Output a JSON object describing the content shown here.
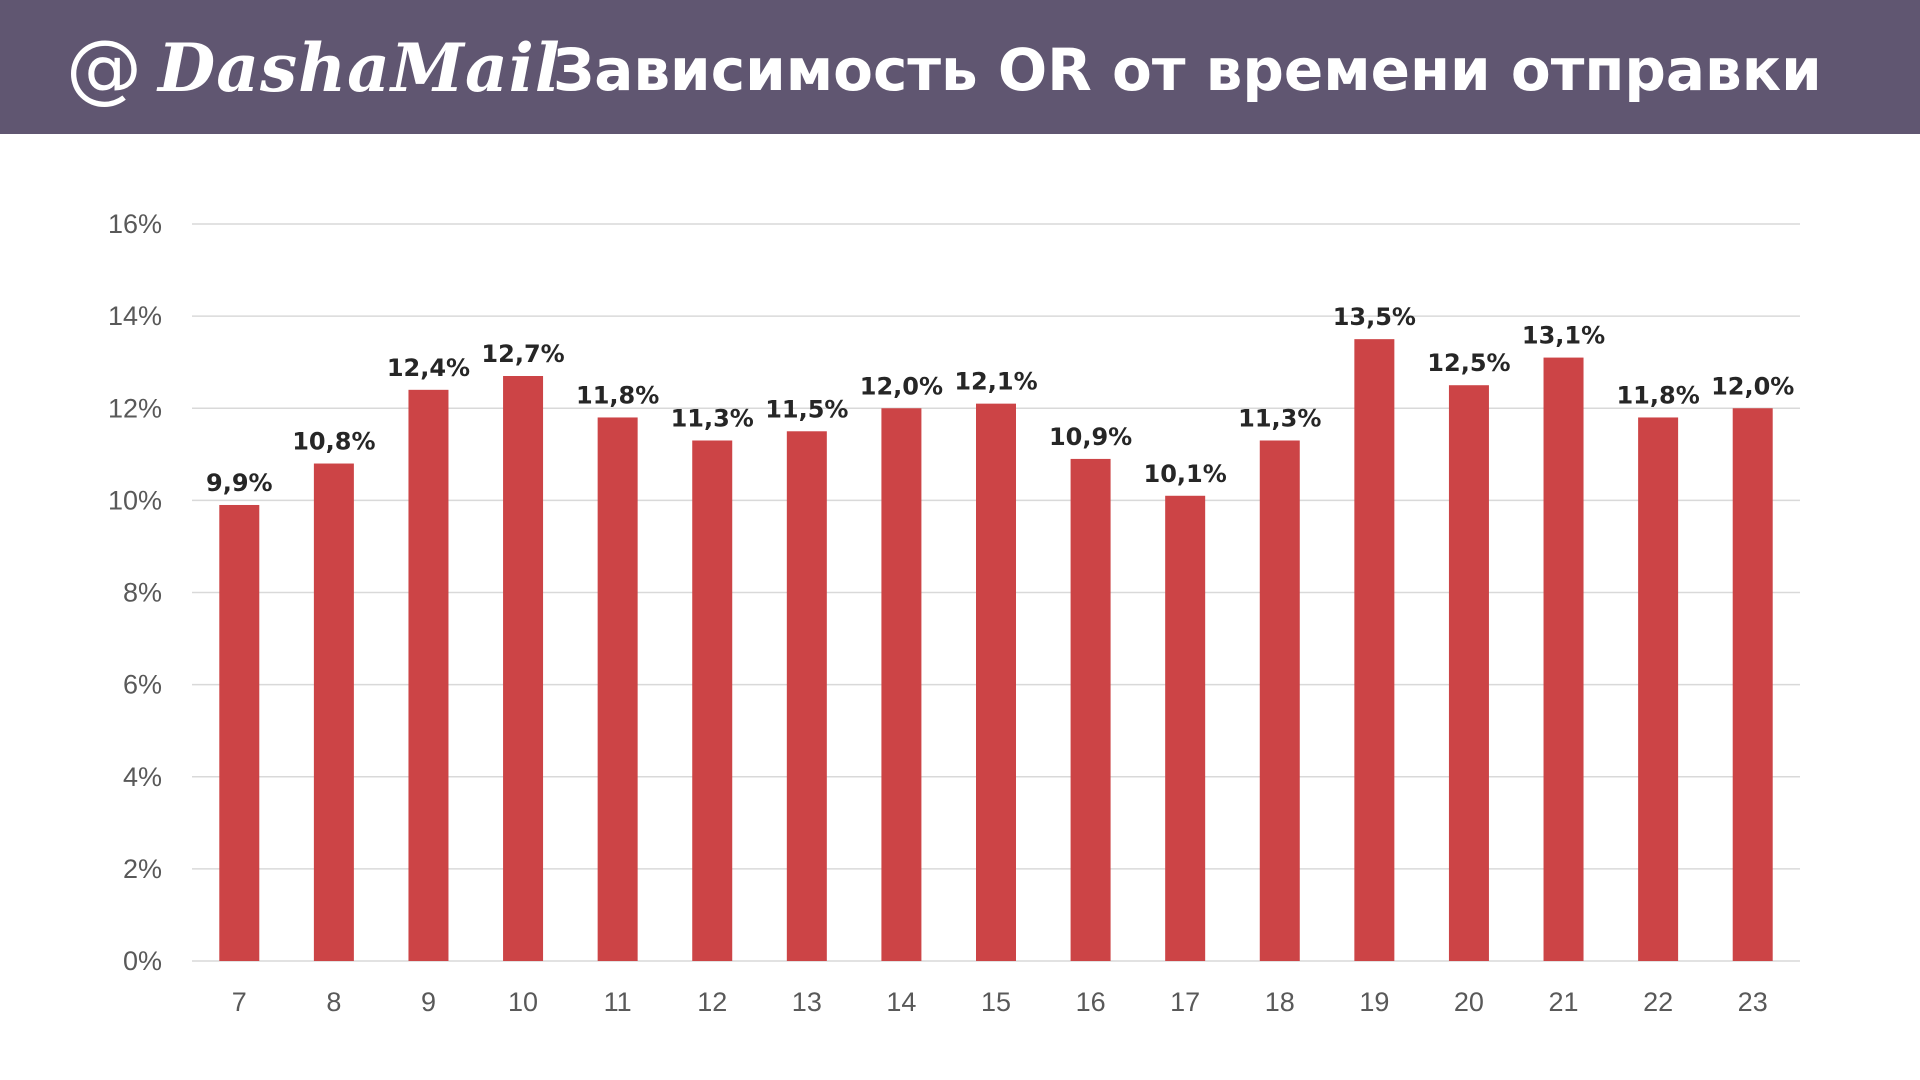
{
  "header": {
    "logo_text": "DashaMail",
    "logo_at": "@",
    "title": "Зависимость OR от времени отправки",
    "background": "#605671"
  },
  "chart_data": {
    "type": "bar",
    "title": "",
    "xlabel": "",
    "ylabel": "",
    "categories": [
      "7",
      "8",
      "9",
      "10",
      "11",
      "12",
      "13",
      "14",
      "15",
      "16",
      "17",
      "18",
      "19",
      "20",
      "21",
      "22",
      "23"
    ],
    "values": [
      9.9,
      10.8,
      12.4,
      12.7,
      11.8,
      11.3,
      11.5,
      12.0,
      12.1,
      10.9,
      10.1,
      11.3,
      13.5,
      12.5,
      13.1,
      11.8,
      12.0
    ],
    "data_labels": [
      "9,9%",
      "10,8%",
      "12,4%",
      "12,7%",
      "11,8%",
      "11,3%",
      "11,5%",
      "12,0%",
      "12,1%",
      "10,9%",
      "10,1%",
      "11,3%",
      "13,5%",
      "12,5%",
      "13,1%",
      "11,8%",
      "12,0%"
    ],
    "ylim": [
      0,
      16
    ],
    "yticks": [
      "0%",
      "2%",
      "4%",
      "6%",
      "8%",
      "10%",
      "12%",
      "14%",
      "16%"
    ],
    "ytick_values": [
      0,
      2,
      4,
      6,
      8,
      10,
      12,
      14,
      16
    ],
    "grid": true,
    "legend": "none",
    "bar_color": "#CC4446",
    "grid_color": "#D9D9D9"
  }
}
